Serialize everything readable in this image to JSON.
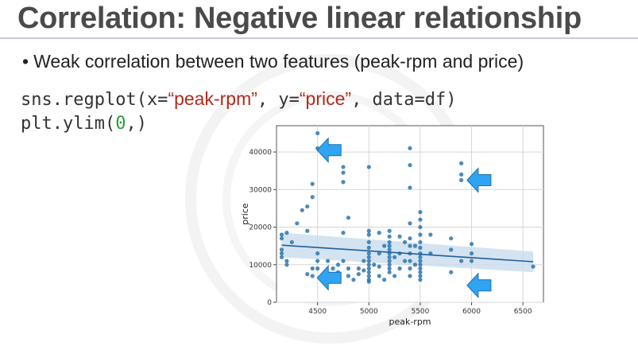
{
  "slide": {
    "title": "Correlation: Negative linear relationship",
    "bullet": "Weak correlation between two features (peak-rpm and price)",
    "code": {
      "line1_prefix": "sns.regplot(x=",
      "line1_x_arg": "“peak-rpm”",
      "line1_mid": ", y=",
      "line1_y_arg": "“price”",
      "line1_suffix": ", data=df)",
      "line2_prefix": "plt.ylim(",
      "line2_num": "0",
      "line2_suffix": ",)"
    }
  },
  "colors": {
    "title": "#4a4a4a",
    "string_literal": "#b22a1a",
    "number_literal": "#2f9a3f",
    "points": "#2e75ad",
    "regression_line": "#1f5f9a",
    "confidence_band": "#c8dcee",
    "arrows": "#2fa4f2"
  },
  "chart_data": {
    "type": "scatter",
    "title": "",
    "xlabel": "peak-rpm",
    "ylabel": "price",
    "xlim": [
      4100,
      6700
    ],
    "ylim": [
      0,
      47000
    ],
    "xticks": [
      4500,
      5000,
      5500,
      6000,
      6500
    ],
    "yticks": [
      0,
      10000,
      20000,
      30000,
      40000
    ],
    "grid": true,
    "regression": {
      "x": [
        4150,
        6600
      ],
      "y": [
        15200,
        10800
      ],
      "band_lower": [
        12000,
        8000
      ],
      "band_upper": [
        18500,
        13500
      ]
    },
    "points": [
      [
        4150,
        18000
      ],
      [
        4150,
        17000
      ],
      [
        4150,
        14000
      ],
      [
        4150,
        13000
      ],
      [
        4150,
        12000
      ],
      [
        4200,
        18500
      ],
      [
        4200,
        11000
      ],
      [
        4200,
        10000
      ],
      [
        4250,
        16000
      ],
      [
        4300,
        21000
      ],
      [
        4350,
        24500
      ],
      [
        4400,
        25500
      ],
      [
        4400,
        19000
      ],
      [
        4400,
        7500
      ],
      [
        4450,
        28000
      ],
      [
        4450,
        31500
      ],
      [
        4450,
        9000
      ],
      [
        4450,
        7000
      ],
      [
        4500,
        45000
      ],
      [
        4500,
        41000
      ],
      [
        4500,
        13000
      ],
      [
        4500,
        11000
      ],
      [
        4500,
        9000
      ],
      [
        4550,
        7000
      ],
      [
        4600,
        11000
      ],
      [
        4650,
        9000
      ],
      [
        4700,
        10000
      ],
      [
        4700,
        8000
      ],
      [
        4750,
        36000
      ],
      [
        4750,
        34500
      ],
      [
        4750,
        32000
      ],
      [
        4750,
        18500
      ],
      [
        4750,
        11000
      ],
      [
        4800,
        22500
      ],
      [
        4800,
        9000
      ],
      [
        4800,
        7000
      ],
      [
        4850,
        6000
      ],
      [
        4900,
        9000
      ],
      [
        4900,
        7500
      ],
      [
        4950,
        11000
      ],
      [
        4950,
        8500
      ],
      [
        5000,
        36000
      ],
      [
        5000,
        19000
      ],
      [
        5000,
        18000
      ],
      [
        5000,
        16000
      ],
      [
        5000,
        14500
      ],
      [
        5000,
        13000
      ],
      [
        5000,
        12000
      ],
      [
        5000,
        11000
      ],
      [
        5000,
        10000
      ],
      [
        5000,
        9000
      ],
      [
        5000,
        8000
      ],
      [
        5000,
        7000
      ],
      [
        5000,
        6000
      ],
      [
        5000,
        5500
      ],
      [
        5050,
        10000
      ],
      [
        5100,
        18500
      ],
      [
        5100,
        13000
      ],
      [
        5100,
        9500
      ],
      [
        5100,
        7000
      ],
      [
        5150,
        15000
      ],
      [
        5150,
        6000
      ],
      [
        5200,
        19000
      ],
      [
        5200,
        17500
      ],
      [
        5200,
        16000
      ],
      [
        5200,
        15000
      ],
      [
        5200,
        14000
      ],
      [
        5200,
        13000
      ],
      [
        5200,
        12000
      ],
      [
        5200,
        11000
      ],
      [
        5200,
        10000
      ],
      [
        5200,
        9000
      ],
      [
        5200,
        8000
      ],
      [
        5250,
        12000
      ],
      [
        5250,
        7000
      ],
      [
        5300,
        17500
      ],
      [
        5300,
        13000
      ],
      [
        5300,
        9000
      ],
      [
        5350,
        16000
      ],
      [
        5350,
        11000
      ],
      [
        5400,
        41000
      ],
      [
        5400,
        36500
      ],
      [
        5400,
        30500
      ],
      [
        5400,
        21000
      ],
      [
        5400,
        17000
      ],
      [
        5400,
        15000
      ],
      [
        5400,
        13000
      ],
      [
        5400,
        11000
      ],
      [
        5400,
        9000
      ],
      [
        5400,
        7000
      ],
      [
        5450,
        15000
      ],
      [
        5450,
        10000
      ],
      [
        5500,
        24000
      ],
      [
        5500,
        22000
      ],
      [
        5500,
        20000
      ],
      [
        5500,
        18000
      ],
      [
        5500,
        16000
      ],
      [
        5500,
        14500
      ],
      [
        5500,
        13000
      ],
      [
        5500,
        12000
      ],
      [
        5500,
        11000
      ],
      [
        5500,
        10000
      ],
      [
        5500,
        9000
      ],
      [
        5500,
        8000
      ],
      [
        5500,
        7000
      ],
      [
        5500,
        6000
      ],
      [
        5600,
        18000
      ],
      [
        5600,
        13000
      ],
      [
        5800,
        17000
      ],
      [
        5800,
        14000
      ],
      [
        5800,
        8000
      ],
      [
        5900,
        37000
      ],
      [
        5900,
        34000
      ],
      [
        5900,
        32500
      ],
      [
        5900,
        11000
      ],
      [
        6000,
        15500
      ],
      [
        6000,
        13000
      ],
      [
        6000,
        11000
      ],
      [
        6600,
        9500
      ]
    ],
    "annotations": [
      {
        "type": "arrow",
        "direction": "left",
        "x": 4620,
        "y": 40500
      },
      {
        "type": "arrow",
        "direction": "left",
        "x": 6080,
        "y": 32500
      },
      {
        "type": "arrow",
        "direction": "left",
        "x": 4620,
        "y": 6500
      },
      {
        "type": "arrow",
        "direction": "left",
        "x": 6080,
        "y": 4500
      }
    ]
  }
}
